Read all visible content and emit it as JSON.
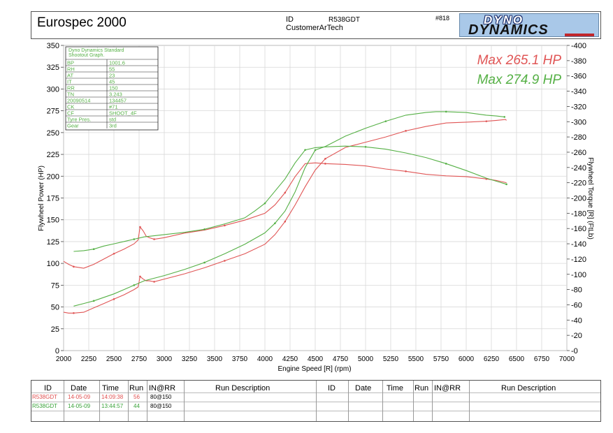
{
  "header": {
    "title": "Eurospec 2000",
    "id_label": "ID",
    "id_value": "R538GDT",
    "customer": "CustomerArTech",
    "run_no": "#818",
    "logo_top": "DYNO",
    "logo_bottom": "DYNAMICS"
  },
  "chart_data": {
    "type": "line",
    "xlabel": "Engine Speed [R] (rpm)",
    "ylabel_left": "Flywheel Power (HP)",
    "ylabel_right": "Flywheel Torque [R] (FtLb)",
    "xlim": [
      2000,
      7000
    ],
    "ylim_left": [
      0,
      350
    ],
    "ylim_right": [
      0,
      400
    ],
    "x_ticks": [
      2000,
      2250,
      2500,
      2750,
      3000,
      3250,
      3500,
      3750,
      4000,
      4250,
      4500,
      4750,
      5000,
      5250,
      5500,
      5750,
      6000,
      6250,
      6500,
      6750,
      7000
    ],
    "y_left_ticks": [
      0,
      25,
      50,
      75,
      100,
      125,
      150,
      175,
      200,
      225,
      250,
      275,
      300,
      325,
      350
    ],
    "y_right_ticks": [
      0,
      20,
      40,
      60,
      80,
      100,
      120,
      140,
      160,
      180,
      200,
      220,
      240,
      260,
      280,
      300,
      320,
      340,
      360,
      380,
      400
    ],
    "grid": true,
    "annotations": [
      {
        "text": "Max 265.1 HP",
        "color": "#e05555"
      },
      {
        "text": "Max 274.9 HP",
        "color": "#55b045"
      }
    ],
    "series": [
      {
        "color": "#e05555",
        "power": {
          "x": [
            2000,
            2050,
            2100,
            2200,
            2300,
            2400,
            2500,
            2600,
            2700,
            2740,
            2760,
            2790,
            2820,
            2850,
            2900,
            3000,
            3200,
            3400,
            3600,
            3800,
            4000,
            4100,
            4200,
            4300,
            4400,
            4500,
            4600,
            4800,
            5000,
            5200,
            5400,
            5600,
            5800,
            6000,
            6200,
            6300,
            6390,
            6400
          ],
          "y": [
            44,
            43,
            43,
            44,
            49,
            54,
            59,
            64,
            70,
            73,
            85,
            82,
            80,
            80,
            79,
            82,
            88,
            95,
            103,
            111,
            122,
            133,
            148,
            167,
            188,
            207,
            220,
            233,
            239,
            245,
            252,
            257,
            261,
            262,
            263,
            264,
            265,
            264
          ]
        },
        "torque": {
          "x": [
            2000,
            2050,
            2100,
            2200,
            2300,
            2400,
            2500,
            2600,
            2700,
            2740,
            2760,
            2790,
            2820,
            2850,
            2900,
            3000,
            3200,
            3400,
            3600,
            3800,
            4000,
            4100,
            4200,
            4300,
            4400,
            4500,
            4600,
            4800,
            5000,
            5200,
            5400,
            5600,
            5800,
            6000,
            6200,
            6300,
            6400
          ],
          "y": [
            117,
            113,
            110,
            108,
            113,
            120,
            127,
            133,
            140,
            145,
            162,
            157,
            150,
            148,
            146,
            148,
            154,
            158,
            164,
            171,
            180,
            191,
            207,
            228,
            245,
            246,
            245,
            244,
            242,
            238,
            235,
            231,
            229,
            228,
            225,
            223,
            220
          ]
        }
      },
      {
        "color": "#55b045",
        "power": {
          "x": [
            2100,
            2200,
            2300,
            2400,
            2500,
            2600,
            2700,
            2800,
            3000,
            3200,
            3400,
            3600,
            3800,
            4000,
            4100,
            4200,
            4300,
            4400,
            4500,
            4600,
            4800,
            5000,
            5200,
            5400,
            5600,
            5700,
            5800,
            6000,
            6200,
            6300,
            6380
          ],
          "y": [
            51,
            54,
            57,
            61,
            65,
            70,
            75,
            80,
            86,
            93,
            101,
            111,
            122,
            135,
            146,
            160,
            182,
            210,
            230,
            234,
            246,
            255,
            263,
            270,
            273,
            274,
            274,
            273,
            270,
            269,
            268
          ]
        },
        "torque": {
          "x": [
            2100,
            2200,
            2300,
            2400,
            2500,
            2600,
            2700,
            2800,
            3000,
            3200,
            3400,
            3600,
            3800,
            3900,
            4000,
            4100,
            4200,
            4300,
            4400,
            4500,
            4600,
            4800,
            5000,
            5200,
            5400,
            5600,
            5800,
            6000,
            6200,
            6300,
            6400
          ],
          "y": [
            130,
            131,
            133,
            137,
            140,
            143,
            146,
            149,
            152,
            155,
            159,
            166,
            174,
            183,
            193,
            209,
            225,
            246,
            263,
            266,
            267,
            268,
            267,
            264,
            259,
            253,
            245,
            236,
            226,
            222,
            218
          ]
        }
      }
    ]
  },
  "info_box": {
    "title_line1": "Dyno Dynamics Standard",
    "title_line2": "Shootout Graph.",
    "rows": [
      {
        "k": "BP",
        "v": "1001.6"
      },
      {
        "k": "RH",
        "v": "55"
      },
      {
        "k": "AT",
        "v": "23"
      },
      {
        "k": "IT",
        "v": "45"
      },
      {
        "k": "RR",
        "v": "150"
      },
      {
        "k": "TN",
        "v": "3.243"
      },
      {
        "k": "20090514",
        "v": "134457"
      },
      {
        "k": "CK",
        "v": "#71"
      },
      {
        "k": "CF",
        "v": "SHOOT_4F"
      },
      {
        "k": "Tyre Pres.",
        "v": "std"
      },
      {
        "k": "Gear",
        "v": "3rd"
      }
    ]
  },
  "table": {
    "headers": [
      "ID",
      "Date",
      "Time",
      "Run",
      "IN@RR",
      "Run Description",
      "ID",
      "Date",
      "Time",
      "Run",
      "IN@RR",
      "Run Description"
    ],
    "rows": [
      {
        "id": "R538GDT",
        "date": "14-05-09",
        "time": "14:09:38",
        "run": "56",
        "inrr": "80@150",
        "color": "#e05050"
      },
      {
        "id": "R538GDT",
        "date": "14-05-09",
        "time": "13:44:57",
        "run": "44",
        "inrr": "80@150",
        "color": "#3aa23a"
      }
    ]
  }
}
